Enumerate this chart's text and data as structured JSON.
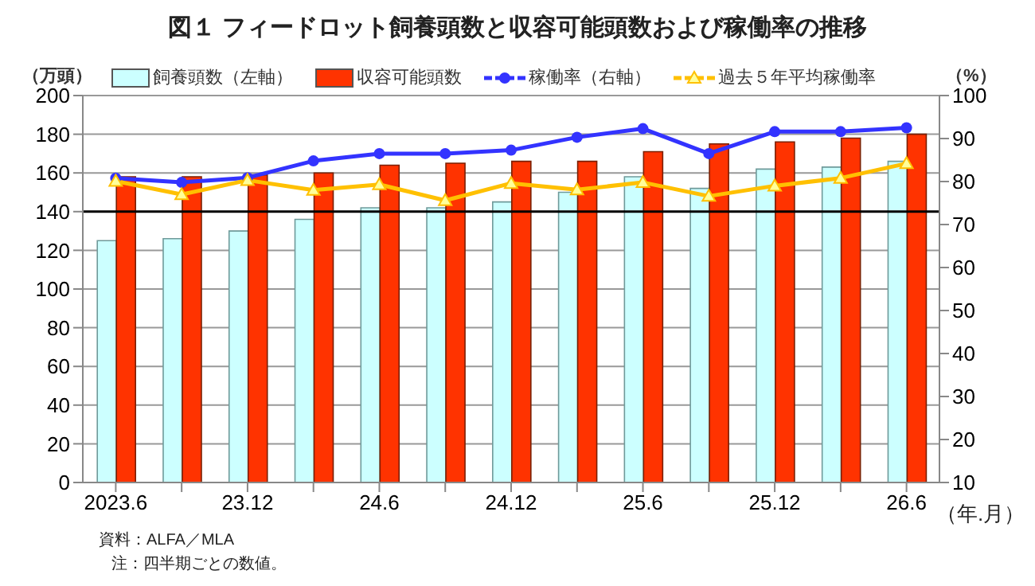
{
  "chart_data": {
    "type": "bar",
    "title": "図１ フィードロット飼養頭数と収容可能頭数および稼働率の推移",
    "ylabel": "（万頭）",
    "y2label": "（%）",
    "xlabel": "（年.月）",
    "categories": [
      "2023.6",
      null,
      "23.12",
      null,
      "24.6",
      null,
      "24.12",
      null,
      "25.6",
      null,
      "25.12",
      null,
      "26.6"
    ],
    "series": [
      {
        "name": "飼養頭数（左軸）",
        "color": "#ccffff",
        "values": [
          125,
          126,
          130,
          136,
          142,
          142,
          145,
          150,
          158,
          152,
          162,
          163,
          166
        ]
      },
      {
        "name": "収容可能頭数",
        "color": "#ff3300",
        "values": [
          158,
          158,
          159,
          160,
          164,
          165,
          166,
          166,
          171,
          175,
          176,
          178,
          180
        ]
      },
      {
        "name": "稼働率（右軸）",
        "type": "line",
        "axis": "y2",
        "color": "#3333ff",
        "marker": "circle",
        "values": [
          80.8,
          79.8,
          80.9,
          84.8,
          86.5,
          86.5,
          87.3,
          90.3,
          92.3,
          86.5,
          91.6,
          91.6,
          92.5
        ]
      },
      {
        "name": "過去５年平均稼働率",
        "type": "line",
        "axis": "y2",
        "color": "#ffc000",
        "marker": "triangle",
        "values": [
          80.1,
          77,
          80.3,
          78,
          79.3,
          75.6,
          79.6,
          78.1,
          79.8,
          76.6,
          79,
          80.8,
          84.2
        ]
      }
    ],
    "ylim": [
      0,
      200
    ],
    "yticks": [
      0,
      20,
      40,
      60,
      80,
      100,
      120,
      140,
      160,
      180,
      200
    ],
    "y2lim": [
      10,
      100
    ],
    "y2ticks": [
      10,
      20,
      30,
      40,
      50,
      60,
      70,
      80,
      90,
      100
    ],
    "ref_lines": [
      {
        "axis": "y",
        "value": 140,
        "color": "#000000"
      }
    ],
    "grid": "y",
    "legend": "top",
    "annotations": [
      "資料：ALFA／MLA",
      "注：四半期ごとの数値。"
    ]
  }
}
